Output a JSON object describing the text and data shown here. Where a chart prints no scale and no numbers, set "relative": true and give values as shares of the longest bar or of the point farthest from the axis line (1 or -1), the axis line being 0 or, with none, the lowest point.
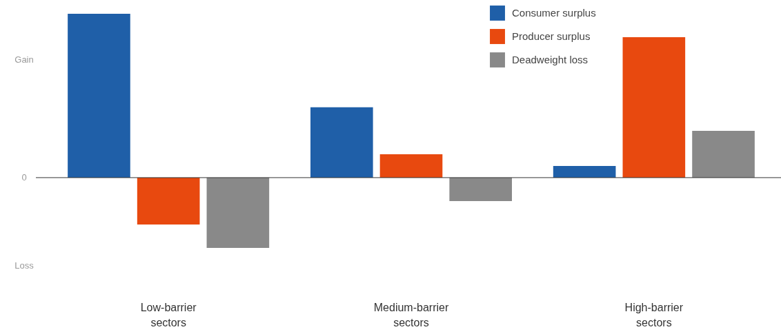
{
  "chart_data": {
    "type": "bar",
    "relative": true,
    "categories": [
      "Low-barrier sectors",
      "Medium-barrier sectors",
      "High-barrier sectors"
    ],
    "series": [
      {
        "name": "Consumer surplus",
        "color": "#1f5fa8",
        "values": [
          1,
          0.429,
          0.071
        ]
      },
      {
        "name": "Producer surplus",
        "color": "#e8490f",
        "values": [
          -0.286,
          0.143,
          0.857
        ]
      },
      {
        "name": "Deadweight loss",
        "color": "#898989",
        "values": [
          -0.429,
          -0.143,
          0.286
        ]
      }
    ],
    "ref_lines": [
      {
        "axis": "y",
        "value": 0,
        "label": "0",
        "color": "#333333"
      }
    ],
    "annotations": [
      "Gain",
      "Loss"
    ],
    "legend": "top right"
  }
}
